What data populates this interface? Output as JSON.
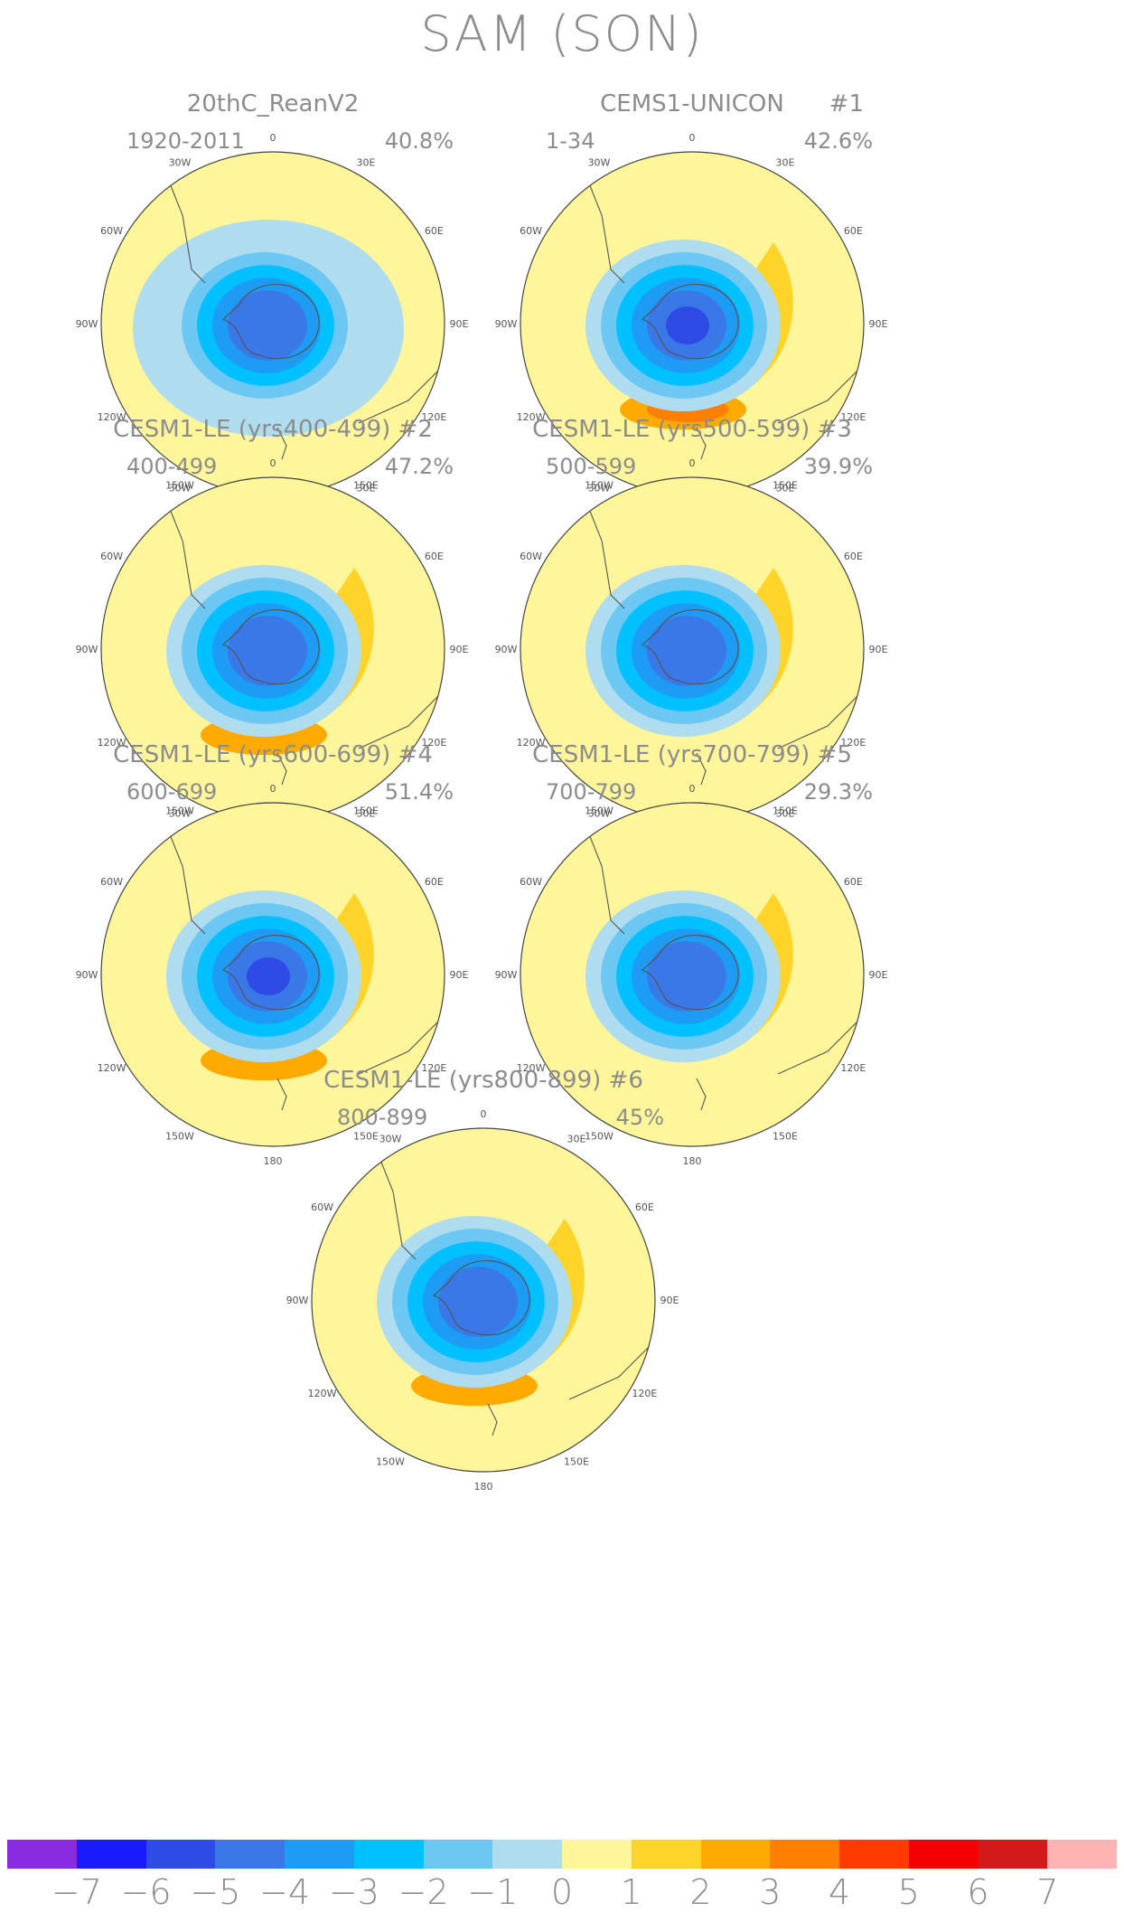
{
  "title": "SAM (SON)",
  "panels": [
    {
      "id": "p0",
      "title": "20thC_ReanV2",
      "tag": "",
      "period": "1920-2011",
      "percent": "40.8%",
      "pattern": {
        "polar_min": -4,
        "ring_max": 0,
        "ring_strength": 0,
        "pacific_max": 0
      }
    },
    {
      "id": "p1",
      "title": "CEMS1-UNICON",
      "tag": "#1",
      "period": "1-34",
      "percent": "42.6%",
      "pattern": {
        "polar_min": -5,
        "ring_max": 3,
        "ring_strength": 1,
        "pacific_max": 3
      }
    },
    {
      "id": "p2",
      "title": "CESM1-LE (yrs400-499) #2",
      "tag": "",
      "period": "400-499",
      "percent": "47.2%",
      "pattern": {
        "polar_min": -4,
        "ring_max": 2,
        "ring_strength": 1,
        "pacific_max": 2
      }
    },
    {
      "id": "p3",
      "title": "CESM1-LE (yrs500-599) #3",
      "tag": "",
      "period": "500-599",
      "percent": "39.9%",
      "pattern": {
        "polar_min": -4,
        "ring_max": 1,
        "ring_strength": 1,
        "pacific_max": 1
      }
    },
    {
      "id": "p4",
      "title": "CESM1-LE (yrs600-699) #4",
      "tag": "",
      "period": "600-699",
      "percent": "51.4%",
      "pattern": {
        "polar_min": -5,
        "ring_max": 2,
        "ring_strength": 1,
        "pacific_max": 2
      }
    },
    {
      "id": "p5",
      "title": "CESM1-LE (yrs700-799) #5",
      "tag": "",
      "period": "700-799",
      "percent": "29.3%",
      "pattern": {
        "polar_min": -4,
        "ring_max": 1,
        "ring_strength": 1,
        "pacific_max": 1
      }
    },
    {
      "id": "p6",
      "title": "CESM1-LE (yrs800-899) #6",
      "tag": "",
      "period": "800-899",
      "percent": "45%",
      "pattern": {
        "polar_min": -4,
        "ring_max": 2,
        "ring_strength": 1,
        "pacific_max": 2
      }
    }
  ],
  "longitude_labels": [
    "0",
    "30E",
    "60E",
    "90E",
    "120E",
    "150E",
    "180",
    "150W",
    "120W",
    "90W",
    "60W",
    "30W"
  ],
  "colorbar": {
    "colors": [
      "#8a2be2",
      "#1a1aff",
      "#2e4be6",
      "#3a78e8",
      "#1e9bf5",
      "#00c0ff",
      "#6cc8f2",
      "#b0dcf0",
      "#fff59a",
      "#ffd42a",
      "#ffaa00",
      "#ff7f00",
      "#ff3b00",
      "#f50000",
      "#d21a1a",
      "#ffb3b3"
    ],
    "ticks": [
      "-7",
      "-6",
      "-5",
      "-4",
      "-3",
      "-2",
      "-1",
      "0",
      "1",
      "2",
      "3",
      "4",
      "5",
      "6",
      "7"
    ]
  },
  "value_colors": {
    "-5": "#2e4be6",
    "-4": "#3a78e8",
    "-3": "#1e9bf5",
    "-2": "#00c0ff",
    "-1": "#6cc8f2",
    "0": "#b0dcf0",
    "1": "#fff59a",
    "2": "#ffd42a",
    "3": "#ffaa00",
    "4": "#ff7f00"
  }
}
